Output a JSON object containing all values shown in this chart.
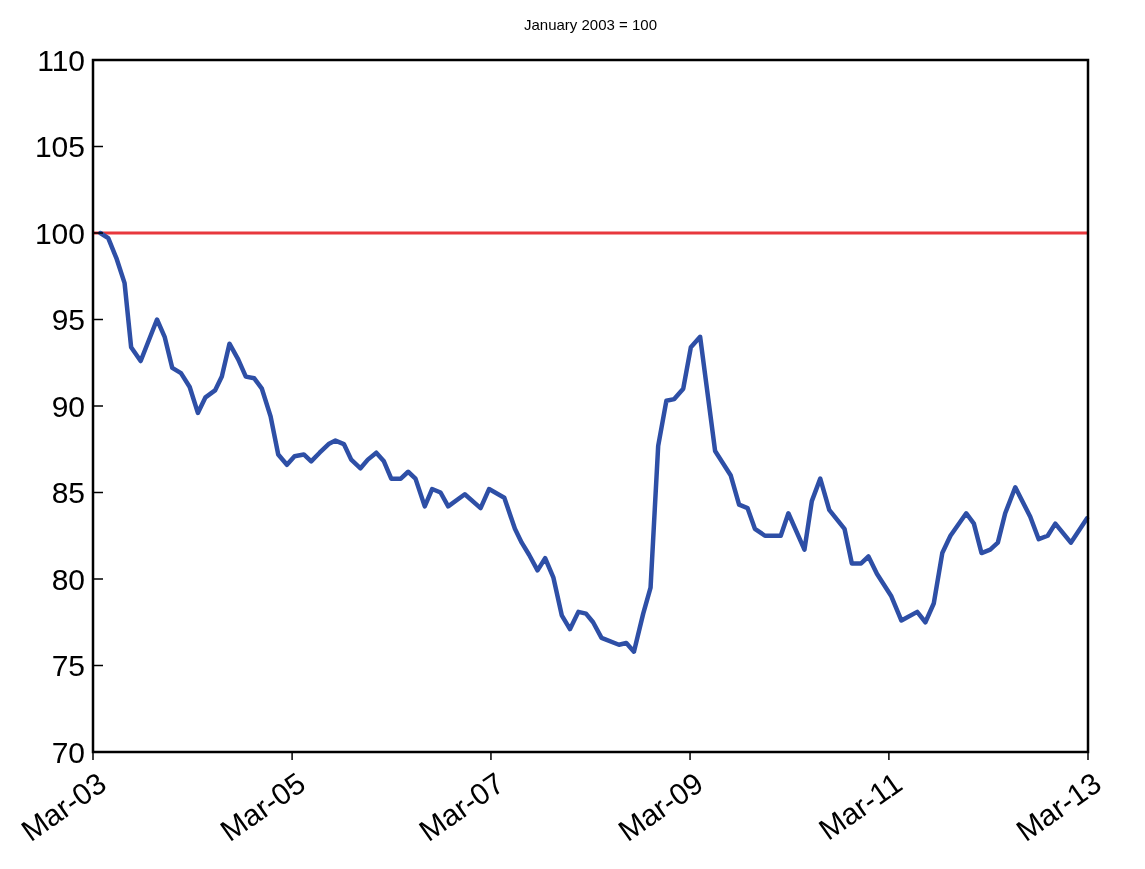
{
  "chart_data": {
    "type": "line",
    "title": "January 2003 = 100",
    "xlim": [
      "2003-03",
      "2013-03"
    ],
    "xticks": [
      {
        "value": "2003-03",
        "label": "Mar-03"
      },
      {
        "value": "2005-03",
        "label": "Mar-05"
      },
      {
        "value": "2007-03",
        "label": "Mar-07"
      },
      {
        "value": "2009-03",
        "label": "Mar-09"
      },
      {
        "value": "2011-03",
        "label": "Mar-11"
      },
      {
        "value": "2013-03",
        "label": "Mar-13"
      }
    ],
    "ylim": [
      70,
      110
    ],
    "yticks": [
      70,
      75,
      80,
      85,
      90,
      95,
      100,
      105,
      110
    ],
    "grid": false,
    "marker": "none",
    "line_style": "solid",
    "ref_lines": [
      {
        "axis": "y",
        "value": 100,
        "color": "#e8383d"
      }
    ],
    "series": [
      {
        "color": "#2e4fa6",
        "x": [
          "2003-03-28",
          "2003-04-26",
          "2003-05-27",
          "2003-06-25",
          "2003-07-19",
          "2003-08-23",
          "2003-10-22",
          "2003-11-19",
          "2003-12-17",
          "2004-01-18",
          "2004-02-19",
          "2004-03-20",
          "2004-04-17",
          "2004-05-22",
          "2004-06-16",
          "2004-07-14",
          "2004-08-15",
          "2004-09-12",
          "2004-10-13",
          "2004-11-10",
          "2004-12-12",
          "2005-01-09",
          "2005-02-10",
          "2005-03-10",
          "2005-04-13",
          "2005-05-10",
          "2005-06-10",
          "2005-07-13",
          "2005-08-07",
          "2005-09-07",
          "2005-10-04",
          "2005-11-07",
          "2005-12-04",
          "2006-01-04",
          "2006-02-01",
          "2006-02-28",
          "2006-04-04",
          "2006-05-01",
          "2006-05-28",
          "2006-07-01",
          "2006-07-28",
          "2006-08-28",
          "2006-09-25",
          "2006-11-25",
          "2007-01-22",
          "2007-02-22",
          "2007-04-19",
          "2007-05-28",
          "2007-06-22",
          "2007-07-19",
          "2007-08-19",
          "2007-09-16",
          "2007-10-16",
          "2007-11-16",
          "2007-12-16",
          "2008-01-16",
          "2008-02-13",
          "2008-03-10",
          "2008-04-10",
          "2008-06-13",
          "2008-07-10",
          "2008-08-07",
          "2008-09-10",
          "2008-10-07",
          "2008-11-04",
          "2008-12-04",
          "2009-01-02",
          "2009-02-04",
          "2009-03-04",
          "2009-04-07",
          "2009-06-01",
          "2009-07-28",
          "2009-08-28",
          "2009-09-28",
          "2009-10-25",
          "2009-12-01",
          "2010-01-28",
          "2010-02-25",
          "2010-04-25",
          "2010-05-22",
          "2010-06-22",
          "2010-07-25",
          "2010-09-19",
          "2010-10-16",
          "2010-11-19",
          "2010-12-16",
          "2011-01-16",
          "2011-03-10",
          "2011-04-16",
          "2011-06-13",
          "2011-07-13",
          "2011-08-13",
          "2011-09-13",
          "2011-10-13",
          "2011-12-10",
          "2012-01-07",
          "2012-02-04",
          "2012-03-07",
          "2012-04-04",
          "2012-05-01",
          "2012-06-07",
          "2012-08-01",
          "2012-09-01",
          "2012-10-04",
          "2012-11-01",
          "2012-12-28",
          "2013-02-25"
        ],
        "values": [
          100,
          99.7,
          98.5,
          97.1,
          93.4,
          92.6,
          95.0,
          94.0,
          92.2,
          91.9,
          91.1,
          89.6,
          90.5,
          90.9,
          91.7,
          93.6,
          92.7,
          91.7,
          91.6,
          91.0,
          89.4,
          87.2,
          86.6,
          87.1,
          87.2,
          86.8,
          87.3,
          87.8,
          88.0,
          87.8,
          86.9,
          86.4,
          86.9,
          87.3,
          86.8,
          85.8,
          85.8,
          86.2,
          85.8,
          84.2,
          85.2,
          85.0,
          84.2,
          84.9,
          84.1,
          85.2,
          84.7,
          82.9,
          82.1,
          81.4,
          80.5,
          81.2,
          80.1,
          77.9,
          77.1,
          78.1,
          78.0,
          77.5,
          76.6,
          76.2,
          76.3,
          75.8,
          78.0,
          79.5,
          87.7,
          90.3,
          90.4,
          91.0,
          93.4,
          94.0,
          87.4,
          86.0,
          84.3,
          84.1,
          82.9,
          82.5,
          82.5,
          83.8,
          81.7,
          84.5,
          85.8,
          84.0,
          82.9,
          80.9,
          80.9,
          81.3,
          80.3,
          79.0,
          77.6,
          78.1,
          77.5,
          78.6,
          81.5,
          82.5,
          83.8,
          83.2,
          81.5,
          81.7,
          82.1,
          83.8,
          85.3,
          83.6,
          82.3,
          82.5,
          83.2,
          82.1,
          83.5
        ]
      }
    ]
  }
}
